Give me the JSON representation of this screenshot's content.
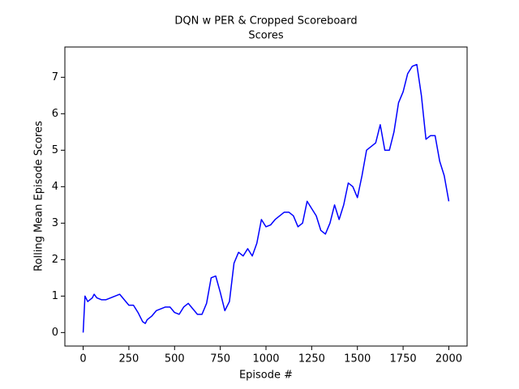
{
  "chart_data": {
    "type": "line",
    "title": "DQN w PER & Cropped Scoreboard",
    "subtitle": "Scores",
    "xlabel": "Episode #",
    "ylabel": "Rolling Mean Episode Scores",
    "x": [
      0,
      5,
      10,
      25,
      50,
      60,
      75,
      100,
      125,
      150,
      175,
      200,
      225,
      250,
      275,
      300,
      325,
      340,
      350,
      375,
      400,
      425,
      450,
      475,
      500,
      525,
      550,
      575,
      600,
      625,
      650,
      675,
      700,
      725,
      750,
      775,
      800,
      825,
      850,
      875,
      900,
      925,
      950,
      975,
      1000,
      1025,
      1050,
      1075,
      1100,
      1125,
      1150,
      1175,
      1200,
      1225,
      1250,
      1275,
      1300,
      1325,
      1350,
      1375,
      1400,
      1425,
      1450,
      1475,
      1500,
      1525,
      1550,
      1575,
      1600,
      1625,
      1650,
      1675,
      1700,
      1725,
      1750,
      1775,
      1800,
      1825,
      1850,
      1875,
      1900,
      1925,
      1950,
      1975,
      2000
    ],
    "series": [
      {
        "color": "#0000ff",
        "values": [
          0.0,
          0.5,
          1.0,
          0.85,
          0.95,
          1.05,
          0.95,
          0.9,
          0.9,
          0.95,
          1.0,
          1.05,
          0.9,
          0.75,
          0.75,
          0.55,
          0.3,
          0.25,
          0.35,
          0.45,
          0.6,
          0.65,
          0.7,
          0.7,
          0.55,
          0.5,
          0.7,
          0.8,
          0.65,
          0.5,
          0.5,
          0.8,
          1.5,
          1.55,
          1.1,
          0.6,
          0.85,
          1.9,
          2.2,
          2.1,
          2.3,
          2.1,
          2.45,
          3.1,
          2.9,
          2.95,
          3.1,
          3.2,
          3.3,
          3.3,
          3.2,
          2.9,
          3.0,
          3.6,
          3.4,
          3.2,
          2.8,
          2.7,
          3.0,
          3.5,
          3.1,
          3.5,
          4.1,
          4.0,
          3.7,
          4.3,
          5.0,
          5.1,
          5.2,
          5.7,
          5.0,
          5.0,
          5.5,
          6.3,
          6.6,
          7.1,
          7.3,
          7.35,
          6.5,
          5.3,
          5.4,
          5.4,
          4.7,
          4.3,
          3.6
        ]
      }
    ],
    "xlim": [
      -100,
      2100
    ],
    "ylim": [
      -0.37,
      7.83
    ],
    "xticks": [
      0,
      250,
      500,
      750,
      1000,
      1250,
      1500,
      1750,
      2000
    ],
    "yticks": [
      0,
      1,
      2,
      3,
      4,
      5,
      6,
      7
    ]
  }
}
